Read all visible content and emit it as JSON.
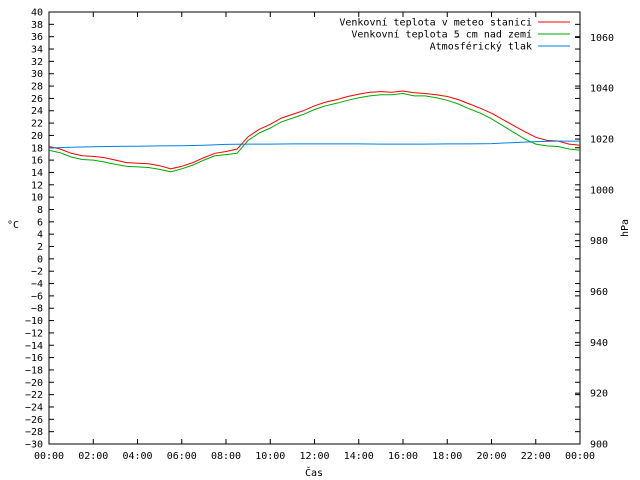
{
  "chart_data": {
    "type": "line",
    "title": "",
    "xlabel": "Čas",
    "ylabel": "°C",
    "y2label": "hPa",
    "x_ticks": [
      "00:00",
      "02:00",
      "04:00",
      "06:00",
      "08:00",
      "10:00",
      "12:00",
      "14:00",
      "16:00",
      "18:00",
      "20:00",
      "22:00",
      "00:00"
    ],
    "x_range_hours": [
      0,
      24
    ],
    "ylim": [
      -30,
      40
    ],
    "y_ticks": [
      40,
      38,
      36,
      34,
      32,
      30,
      28,
      26,
      24,
      22,
      20,
      18,
      16,
      14,
      12,
      10,
      8,
      6,
      4,
      2,
      0,
      -2,
      -4,
      -6,
      -8,
      -10,
      -12,
      -14,
      -16,
      -18,
      -20,
      -22,
      -24,
      -26,
      -28,
      -30
    ],
    "y2lim": [
      900,
      1070
    ],
    "y2_ticks": [
      1060,
      1040,
      1020,
      1000,
      980,
      960,
      940,
      920,
      900
    ],
    "grid": false,
    "legend_position": "top-right",
    "series": [
      {
        "name": "Venkovní teplota v meteo stanici",
        "color": "#ff0000",
        "axis": "left",
        "x": [
          0,
          0.5,
          1,
          1.5,
          2,
          2.5,
          3,
          3.5,
          4,
          4.5,
          5,
          5.5,
          6,
          6.5,
          7,
          7.5,
          8,
          8.5,
          9,
          9.5,
          10,
          10.5,
          11,
          11.5,
          12,
          12.5,
          13,
          13.5,
          14,
          14.5,
          15,
          15.5,
          16,
          16.5,
          17,
          17.5,
          18,
          18.5,
          19,
          19.5,
          20,
          20.5,
          21,
          21.5,
          22,
          22.5,
          23,
          23.5,
          24
        ],
        "values": [
          18.2,
          17.8,
          17.1,
          16.7,
          16.6,
          16.4,
          16.0,
          15.6,
          15.5,
          15.4,
          15.1,
          14.6,
          15.0,
          15.6,
          16.4,
          17.1,
          17.4,
          17.8,
          19.8,
          21.0,
          21.8,
          22.8,
          23.4,
          24.0,
          24.8,
          25.4,
          25.8,
          26.3,
          26.7,
          27.0,
          27.1,
          27.0,
          27.2,
          26.9,
          26.8,
          26.6,
          26.3,
          25.8,
          25.1,
          24.4,
          23.6,
          22.6,
          21.6,
          20.6,
          19.7,
          19.2,
          19.1,
          18.6,
          18.4
        ]
      },
      {
        "name": "Venkovní teplota 5 cm nad zemí",
        "color": "#00aa00",
        "axis": "left",
        "x": [
          0,
          0.5,
          1,
          1.5,
          2,
          2.5,
          3,
          3.5,
          4,
          4.5,
          5,
          5.5,
          6,
          6.5,
          7,
          7.5,
          8,
          8.5,
          9,
          9.5,
          10,
          10.5,
          11,
          11.5,
          12,
          12.5,
          13,
          13.5,
          14,
          14.5,
          15,
          15.5,
          16,
          16.5,
          17,
          17.5,
          18,
          18.5,
          19,
          19.5,
          20,
          20.5,
          21,
          21.5,
          22,
          22.5,
          23,
          23.5,
          24
        ],
        "values": [
          17.6,
          17.2,
          16.5,
          16.1,
          16.0,
          15.7,
          15.3,
          15.0,
          14.9,
          14.8,
          14.5,
          14.1,
          14.6,
          15.2,
          16.0,
          16.7,
          16.9,
          17.1,
          19.2,
          20.4,
          21.2,
          22.2,
          22.8,
          23.4,
          24.2,
          24.8,
          25.2,
          25.7,
          26.1,
          26.4,
          26.6,
          26.6,
          26.8,
          26.4,
          26.4,
          26.1,
          25.7,
          25.1,
          24.3,
          23.6,
          22.7,
          21.6,
          20.5,
          19.4,
          18.6,
          18.3,
          18.2,
          17.8,
          17.6
        ]
      },
      {
        "name": "Atmosférický tlak",
        "color": "#0080e0",
        "axis": "right",
        "x": [
          0,
          1,
          2,
          3,
          4,
          5,
          6,
          7,
          8,
          9,
          10,
          11,
          12,
          13,
          14,
          15,
          16,
          17,
          18,
          19,
          20,
          21,
          22,
          23,
          24
        ],
        "values": [
          1016.5,
          1016.8,
          1017.0,
          1017.1,
          1017.2,
          1017.3,
          1017.4,
          1017.6,
          1017.9,
          1018.0,
          1018.0,
          1018.1,
          1018.1,
          1018.1,
          1018.1,
          1018.0,
          1018.0,
          1018.0,
          1018.1,
          1018.1,
          1018.2,
          1018.6,
          1019.0,
          1019.2,
          1019.2
        ]
      }
    ]
  }
}
